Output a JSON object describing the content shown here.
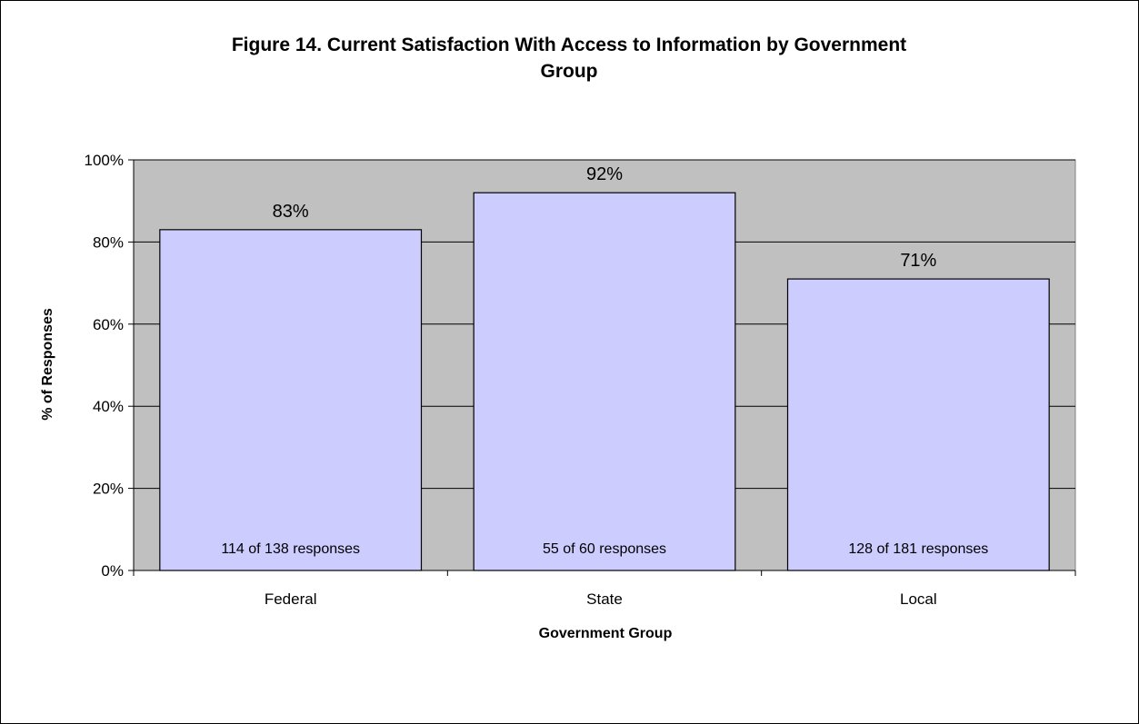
{
  "chart_data": {
    "type": "bar",
    "title_line1": "Figure 14.  Current Satisfaction With Access to Information by Government",
    "title_line2": "Group",
    "xlabel": "Government Group",
    "ylabel": "% of Responses",
    "categories": [
      "Federal",
      "State",
      "Local"
    ],
    "values": [
      83,
      92,
      71
    ],
    "value_labels": [
      "83%",
      "92%",
      "71%"
    ],
    "response_labels": [
      "114 of 138 responses",
      "55 of 60 responses",
      "128 of 181 responses"
    ],
    "ylim": [
      0,
      100
    ],
    "yticks": [
      0,
      20,
      40,
      60,
      80,
      100
    ],
    "ytick_labels": [
      "0%",
      "20%",
      "40%",
      "60%",
      "80%",
      "100%"
    ],
    "grid": true,
    "legend": "none",
    "colors": {
      "bar_fill": "#ccccff",
      "plot_background": "#c0c0c0",
      "gridline": "#000000"
    }
  }
}
